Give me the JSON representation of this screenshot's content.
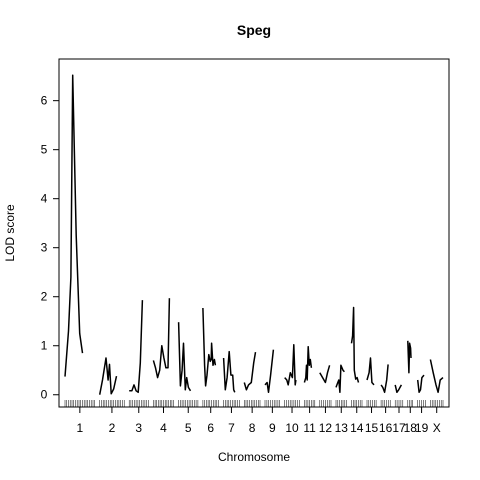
{
  "chart_data": {
    "type": "line",
    "title": "Speg",
    "xlabel": "Chromosome",
    "ylabel": "LOD score",
    "ylim": [
      -0.25,
      6.85
    ],
    "yticks": [
      0,
      1,
      2,
      3,
      4,
      5,
      6
    ],
    "grid": false,
    "legend": "none",
    "line_color": "#000000",
    "chromosomes": [
      {
        "label": "1",
        "xrange": [
          0,
          85
        ],
        "points": [
          [
            0,
            0.37
          ],
          [
            10,
            1.3
          ],
          [
            17,
            2.4
          ],
          [
            22,
            6.52
          ],
          [
            32,
            3.25
          ],
          [
            42,
            1.25
          ],
          [
            50,
            0.85
          ]
        ]
      },
      {
        "label": "2",
        "xrange": [
          0,
          70
        ],
        "points": [
          [
            0,
            0.0
          ],
          [
            8,
            0.3
          ],
          [
            18,
            0.75
          ],
          [
            24,
            0.3
          ],
          [
            28,
            0.62
          ],
          [
            33,
            0.02
          ],
          [
            40,
            0.12
          ],
          [
            48,
            0.38
          ]
        ]
      },
      {
        "label": "3",
        "xrange": [
          0,
          55
        ],
        "points": [
          [
            0,
            0.08
          ],
          [
            8,
            0.08
          ],
          [
            14,
            0.2
          ],
          [
            20,
            0.08
          ],
          [
            26,
            0.05
          ],
          [
            32,
            0.65
          ],
          [
            38,
            1.93
          ]
        ]
      },
      {
        "label": "4",
        "xrange": [
          0,
          58
        ],
        "points": [
          [
            0,
            0.7
          ],
          [
            6,
            0.55
          ],
          [
            12,
            0.35
          ],
          [
            18,
            0.5
          ],
          [
            24,
            1.0
          ],
          [
            30,
            0.75
          ],
          [
            36,
            0.55
          ],
          [
            42,
            0.55
          ],
          [
            46,
            1.97
          ]
        ]
      },
      {
        "label": "5",
        "xrange": [
          0,
          55
        ],
        "points": [
          [
            0,
            1.48
          ],
          [
            5,
            0.18
          ],
          [
            10,
            0.5
          ],
          [
            14,
            1.05
          ],
          [
            19,
            0.1
          ],
          [
            23,
            0.35
          ],
          [
            28,
            0.15
          ],
          [
            34,
            0.08
          ]
        ]
      },
      {
        "label": "6",
        "xrange": [
          0,
          45
        ],
        "points": [
          [
            0,
            1.77
          ],
          [
            5,
            0.6
          ],
          [
            8,
            0.18
          ],
          [
            12,
            0.4
          ],
          [
            17,
            0.82
          ],
          [
            21,
            0.68
          ],
          [
            24,
            0.72
          ],
          [
            25,
            1.05
          ],
          [
            29,
            0.6
          ],
          [
            33,
            0.72
          ],
          [
            36,
            0.6
          ]
        ]
      },
      {
        "label": "7",
        "xrange": [
          0,
          45
        ],
        "points": [
          [
            0,
            0.75
          ],
          [
            5,
            0.1
          ],
          [
            10,
            0.35
          ],
          [
            16,
            0.88
          ],
          [
            21,
            0.4
          ],
          [
            26,
            0.4
          ],
          [
            29,
            0.1
          ],
          [
            32,
            0.05
          ]
        ]
      },
      {
        "label": "8",
        "xrange": [
          0,
          45
        ],
        "points": [
          [
            0,
            0.25
          ],
          [
            6,
            0.1
          ],
          [
            12,
            0.2
          ],
          [
            20,
            0.25
          ],
          [
            27,
            0.65
          ],
          [
            32,
            0.87
          ]
        ]
      },
      {
        "label": "9",
        "xrange": [
          0,
          42
        ],
        "points": [
          [
            0,
            0.2
          ],
          [
            6,
            0.25
          ],
          [
            10,
            0.05
          ],
          [
            16,
            0.4
          ],
          [
            24,
            0.92
          ]
        ]
      },
      {
        "label": "10",
        "xrange": [
          0,
          42
        ],
        "points": [
          [
            0,
            0.35
          ],
          [
            6,
            0.3
          ],
          [
            10,
            0.2
          ],
          [
            16,
            0.45
          ],
          [
            22,
            0.35
          ],
          [
            26,
            1.02
          ],
          [
            30,
            0.2
          ],
          [
            32,
            0.3
          ]
        ]
      },
      {
        "label": "11",
        "xrange": [
          0,
          30
        ],
        "points": [
          [
            0,
            0.25
          ],
          [
            4,
            0.35
          ],
          [
            6,
            0.6
          ],
          [
            8,
            0.3
          ],
          [
            11,
            0.98
          ],
          [
            14,
            0.6
          ],
          [
            17,
            0.72
          ],
          [
            20,
            0.55
          ]
        ]
      },
      {
        "label": "12",
        "xrange": [
          0,
          32
        ],
        "points": [
          [
            0,
            0.45
          ],
          [
            8,
            0.35
          ],
          [
            16,
            0.25
          ],
          [
            22,
            0.45
          ],
          [
            28,
            0.6
          ]
        ]
      },
      {
        "label": "13",
        "xrange": [
          0,
          30
        ],
        "points": [
          [
            0,
            0.15
          ],
          [
            5,
            0.25
          ],
          [
            8,
            0.3
          ],
          [
            11,
            0.05
          ],
          [
            14,
            0.6
          ],
          [
            20,
            0.5
          ],
          [
            24,
            0.47
          ]
        ]
      },
      {
        "label": "14",
        "xrange": [
          0,
          30
        ],
        "points": [
          [
            0,
            1.05
          ],
          [
            3,
            1.2
          ],
          [
            6,
            1.78
          ],
          [
            8,
            0.5
          ],
          [
            12,
            0.32
          ],
          [
            16,
            0.35
          ],
          [
            20,
            0.25
          ]
        ]
      },
      {
        "label": "15",
        "xrange": [
          0,
          26
        ],
        "points": [
          [
            0,
            0.3
          ],
          [
            6,
            0.45
          ],
          [
            10,
            0.75
          ],
          [
            14,
            0.25
          ],
          [
            20,
            0.2
          ]
        ]
      },
      {
        "label": "16",
        "xrange": [
          0,
          26
        ],
        "points": [
          [
            0,
            0.2
          ],
          [
            5,
            0.15
          ],
          [
            10,
            0.05
          ],
          [
            16,
            0.3
          ],
          [
            20,
            0.62
          ]
        ]
      },
      {
        "label": "17",
        "xrange": [
          0,
          22
        ],
        "points": [
          [
            0,
            0.2
          ],
          [
            5,
            0.05
          ],
          [
            10,
            0.1
          ],
          [
            14,
            0.15
          ],
          [
            18,
            0.2
          ]
        ]
      },
      {
        "label": "18",
        "xrange": [
          0,
          14
        ],
        "points": [
          [
            0,
            1.1
          ],
          [
            3,
            0.45
          ],
          [
            5,
            1.05
          ],
          [
            8,
            0.95
          ],
          [
            9,
            0.75
          ]
        ]
      },
      {
        "label": "19",
        "xrange": [
          0,
          22
        ],
        "points": [
          [
            0,
            0.3
          ],
          [
            4,
            0.05
          ],
          [
            8,
            0.1
          ],
          [
            12,
            0.35
          ],
          [
            18,
            0.4
          ]
        ]
      },
      {
        "label": "X",
        "xrange": [
          0,
          36
        ],
        "points": [
          [
            0,
            0.72
          ],
          [
            8,
            0.45
          ],
          [
            16,
            0.2
          ],
          [
            22,
            0.05
          ],
          [
            28,
            0.3
          ],
          [
            36,
            0.35
          ]
        ]
      }
    ]
  }
}
